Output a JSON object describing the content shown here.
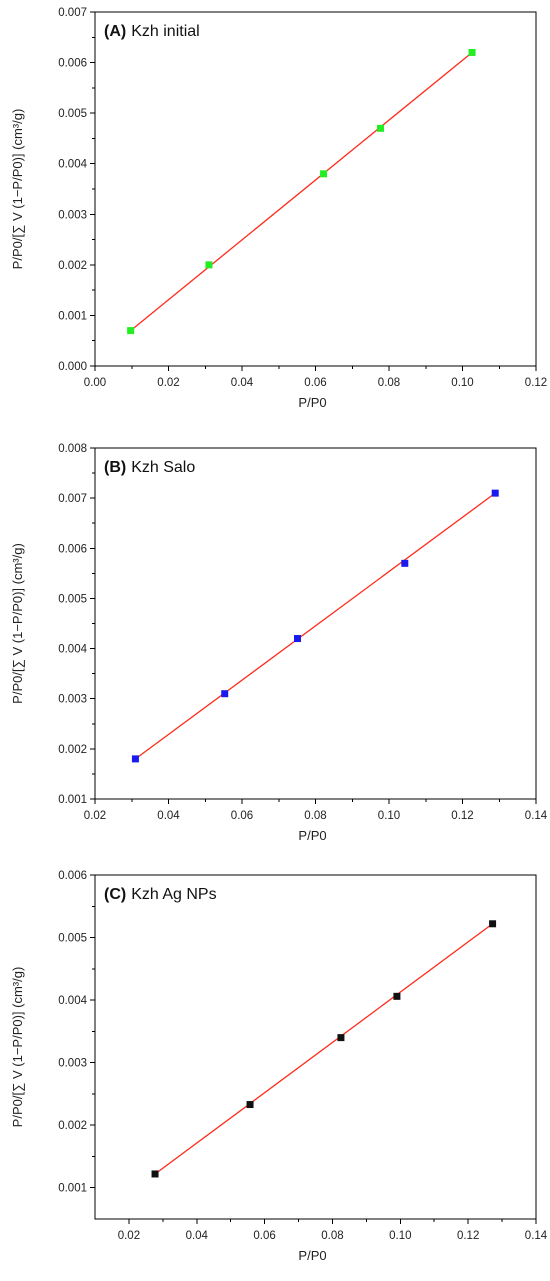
{
  "chart_data": [
    {
      "type": "scatter",
      "panel_tag": "(A)",
      "panel_name": "Kzh initial",
      "xlabel": "P/P0",
      "ylabel": "P/P0/[∑ V (1−P/P0)] (cm³/g)",
      "xlim": [
        0.0,
        0.12
      ],
      "ylim": [
        0.0,
        0.007
      ],
      "xticks": [
        "0.00",
        "0.02",
        "0.04",
        "0.06",
        "0.08",
        "0.10",
        "0.12"
      ],
      "yticks": [
        "0.000",
        "0.001",
        "0.002",
        "0.003",
        "0.004",
        "0.005",
        "0.006",
        "0.007"
      ],
      "marker_color": "#22ee22",
      "line_color": "#ff2a1a",
      "fit": [
        [
          0.0097,
          0.0007
        ],
        [
          0.1026,
          0.0062
        ]
      ],
      "series": [
        {
          "x": [
            0.0097,
            0.031,
            0.0622,
            0.0777,
            0.1026
          ],
          "y": [
            0.0007,
            0.002,
            0.0038,
            0.0047,
            0.0062
          ]
        }
      ],
      "grid": false
    },
    {
      "type": "scatter",
      "panel_tag": "(B)",
      "panel_name": "Kzh Salo",
      "xlabel": "P/P0",
      "ylabel": "P/P0/[∑ V (1−P/P0)] (cm³/g)",
      "xlim": [
        0.02,
        0.14
      ],
      "ylim": [
        0.001,
        0.008
      ],
      "xticks": [
        "0.02",
        "0.04",
        "0.06",
        "0.08",
        "0.10",
        "0.12",
        "0.14"
      ],
      "yticks": [
        "0.001",
        "0.002",
        "0.003",
        "0.004",
        "0.005",
        "0.006",
        "0.007",
        "0.008"
      ],
      "marker_color": "#1a1aee",
      "line_color": "#ff2a1a",
      "fit": [
        [
          0.031,
          0.0018
        ],
        [
          0.1289,
          0.0071
        ]
      ],
      "series": [
        {
          "x": [
            0.031,
            0.0553,
            0.0751,
            0.1043,
            0.1289
          ],
          "y": [
            0.0018,
            0.0031,
            0.0042,
            0.0057,
            0.0071
          ]
        }
      ],
      "grid": false
    },
    {
      "type": "scatter",
      "panel_tag": "(C)",
      "panel_name": "Kzh Ag NPs",
      "xlabel": "P/P0",
      "ylabel": "P/P0/[∑ V (1−P/P0)] (cm³/g)",
      "xlim": [
        0.01,
        0.14
      ],
      "ylim": [
        0.0005,
        0.006
      ],
      "xticks": [
        "0.02",
        "0.04",
        "0.06",
        "0.08",
        "0.10",
        "0.12",
        "0.14"
      ],
      "yticks": [
        "0.001",
        "0.002",
        "0.003",
        "0.004",
        "0.005",
        "0.006"
      ],
      "marker_color": "#111111",
      "line_color": "#ff2a1a",
      "fit": [
        [
          0.0277,
          0.00122
        ],
        [
          0.1272,
          0.00522
        ]
      ],
      "series": [
        {
          "x": [
            0.0277,
            0.0557,
            0.0825,
            0.099,
            0.1272
          ],
          "y": [
            0.00122,
            0.00233,
            0.0034,
            0.00406,
            0.00522
          ]
        }
      ],
      "grid": false
    }
  ]
}
